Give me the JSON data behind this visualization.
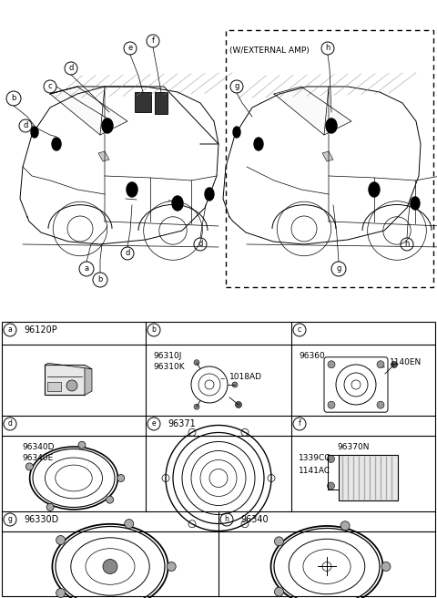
{
  "bg_color": "#ffffff",
  "fig_width": 4.8,
  "fig_height": 6.56,
  "dpi": 100,
  "external_amp_label": "(W/EXTERNAL AMP)",
  "table_rows": [
    {
      "label": "a",
      "part": "96120P",
      "col": 0,
      "ncols": 3
    },
    {
      "label": "b",
      "part": "",
      "col": 1,
      "ncols": 3
    },
    {
      "label": "c",
      "part": "",
      "col": 2,
      "ncols": 3
    },
    {
      "label": "d",
      "part": "",
      "col": 0,
      "ncols": 3
    },
    {
      "label": "e",
      "part": "96371",
      "col": 1,
      "ncols": 3
    },
    {
      "label": "f",
      "part": "",
      "col": 2,
      "ncols": 3
    },
    {
      "label": "g",
      "part": "96330D",
      "col": 0,
      "ncols": 2
    },
    {
      "label": "h",
      "part": "96340",
      "col": 1,
      "ncols": 2
    }
  ],
  "cell_b_parts": [
    "96310J",
    "96310K"
  ],
  "cell_b_ref": "1018AD",
  "cell_c_parts": [
    "96360"
  ],
  "cell_c_ref": "1140EN",
  "cell_d_parts": [
    "96340D",
    "96340E"
  ],
  "cell_f_parts": [
    "1339CC",
    "96370N",
    "1141AC"
  ]
}
